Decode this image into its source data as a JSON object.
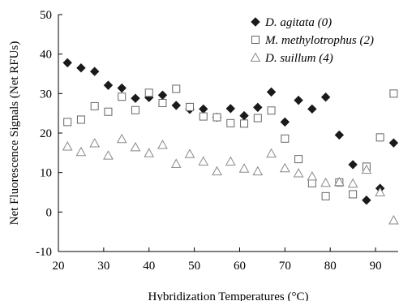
{
  "chart_data": {
    "type": "scatter",
    "xlabel": "Hybridization Temperatures (°C)",
    "ylabel": "Net Fluorescence Signals (Net RFUs)",
    "xlim": [
      20,
      95
    ],
    "ylim": [
      -10,
      50
    ],
    "xticks": [
      20,
      30,
      40,
      50,
      60,
      70,
      80,
      90
    ],
    "yticks": [
      -10,
      0,
      10,
      20,
      30,
      40,
      50
    ],
    "grid": false,
    "legend_position": "top-right",
    "series": [
      {
        "name": "D. agitata (0)",
        "marker": "filled-diamond",
        "color": "#1a1a1a",
        "x": [
          22,
          25,
          28,
          31,
          34,
          37,
          40,
          43,
          46,
          49,
          52,
          55,
          58,
          61,
          64,
          67,
          70,
          73,
          76,
          79,
          82,
          85,
          88,
          91,
          94
        ],
        "y": [
          37.8,
          36.5,
          35.6,
          32.1,
          31.4,
          28.8,
          29.0,
          29.6,
          27.0,
          26.0,
          26.1,
          24.0,
          26.2,
          24.4,
          26.5,
          30.4,
          22.8,
          28.3,
          26.1,
          29.1,
          19.5,
          12.0,
          3.0,
          6.0,
          17.5
        ]
      },
      {
        "name": "M. methylotrophus (2)",
        "marker": "open-square",
        "color": "#666666",
        "x": [
          22,
          25,
          28,
          31,
          34,
          37,
          40,
          43,
          46,
          49,
          52,
          55,
          58,
          61,
          64,
          67,
          70,
          73,
          76,
          79,
          82,
          85,
          88,
          91,
          94
        ],
        "y": [
          22.8,
          23.4,
          26.8,
          25.4,
          29.2,
          25.8,
          30.2,
          27.6,
          31.2,
          26.6,
          24.2,
          24.0,
          22.5,
          22.4,
          23.8,
          25.7,
          18.6,
          13.4,
          7.3,
          4.0,
          7.5,
          4.5,
          11.5,
          18.9,
          30.0
        ]
      },
      {
        "name": "D. suillum (4)",
        "marker": "open-triangle",
        "color": "#888888",
        "x": [
          22,
          25,
          28,
          31,
          34,
          37,
          40,
          43,
          46,
          49,
          52,
          55,
          58,
          61,
          64,
          67,
          70,
          73,
          76,
          79,
          82,
          85,
          88,
          91,
          94
        ],
        "y": [
          16.6,
          15.2,
          17.4,
          14.3,
          18.5,
          16.4,
          14.9,
          17.0,
          12.2,
          14.7,
          12.8,
          10.3,
          12.8,
          11.0,
          10.3,
          14.8,
          11.1,
          9.8,
          9.0,
          7.4,
          7.6,
          7.2,
          10.7,
          5.0,
          -2.1
        ]
      }
    ]
  }
}
